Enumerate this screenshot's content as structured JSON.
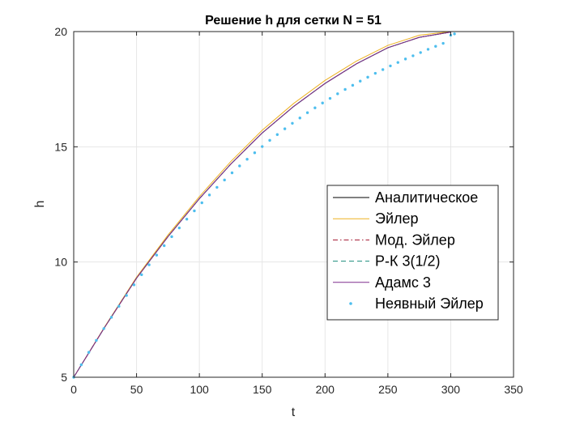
{
  "chart_data": {
    "type": "line",
    "title": "Решение h для сетки N = 51",
    "xlabel": "t",
    "ylabel": "h",
    "xlim": [
      0,
      350
    ],
    "ylim": [
      5,
      20
    ],
    "xticks": [
      0,
      50,
      100,
      150,
      200,
      250,
      300,
      350
    ],
    "yticks": [
      5,
      10,
      15,
      20
    ],
    "grid": true,
    "legend_position": "right-middle",
    "series": [
      {
        "name": "Аналитическое",
        "color": "#000000",
        "style": "solid",
        "x": [
          0,
          25,
          50,
          75,
          100,
          125,
          150,
          175,
          200,
          225,
          250,
          275,
          300
        ],
        "y": [
          5.0,
          7.2,
          9.3,
          11.1,
          12.75,
          14.25,
          15.6,
          16.75,
          17.75,
          18.6,
          19.3,
          19.75,
          19.98
        ]
      },
      {
        "name": "Эйлер",
        "color": "#EDB120",
        "style": "solid",
        "x": [
          0,
          25,
          50,
          75,
          100,
          125,
          150,
          175,
          200,
          225,
          250,
          275,
          300
        ],
        "y": [
          5.0,
          7.22,
          9.34,
          11.17,
          12.84,
          14.36,
          15.72,
          16.88,
          17.88,
          18.72,
          19.4,
          19.84,
          20.0
        ]
      },
      {
        "name": "Мод. Эйлер",
        "color": "#A2142F",
        "style": "dashdot",
        "x": [
          0,
          25,
          50,
          75,
          100,
          125,
          150,
          175,
          200,
          225,
          250,
          275,
          300
        ],
        "y": [
          5.0,
          7.2,
          9.3,
          11.1,
          12.75,
          14.25,
          15.6,
          16.75,
          17.75,
          18.6,
          19.3,
          19.75,
          19.98
        ]
      },
      {
        "name": "Р-К 3(1/2)",
        "color": "#1A8C7C",
        "style": "dashed",
        "x": [
          0,
          25,
          50,
          75,
          100,
          125,
          150,
          175,
          200,
          225,
          250,
          275,
          300
        ],
        "y": [
          5.0,
          7.2,
          9.3,
          11.1,
          12.75,
          14.25,
          15.6,
          16.75,
          17.75,
          18.6,
          19.3,
          19.75,
          19.98
        ]
      },
      {
        "name": "Адамс 3",
        "color": "#7E2F8E",
        "style": "solid",
        "x": [
          0,
          25,
          50,
          75,
          100,
          125,
          150,
          175,
          200,
          225,
          250,
          275,
          300
        ],
        "y": [
          5.0,
          7.2,
          9.3,
          11.1,
          12.75,
          14.25,
          15.6,
          16.75,
          17.75,
          18.6,
          19.3,
          19.75,
          19.98
        ]
      },
      {
        "name": "Неявный Эйлер",
        "color": "#4DBEEE",
        "style": "dots",
        "x": [
          0,
          6,
          12,
          18,
          24,
          30,
          36,
          42,
          48,
          54,
          60,
          66,
          72,
          78,
          84,
          90,
          96,
          102,
          108,
          114,
          120,
          126,
          132,
          138,
          144,
          150,
          156,
          162,
          168,
          174,
          180,
          186,
          192,
          198,
          204,
          210,
          216,
          222,
          228,
          234,
          240,
          246,
          252,
          258,
          264,
          270,
          276,
          282,
          288,
          294,
          300,
          303
        ],
        "y": [
          5.0,
          5.54,
          6.08,
          6.6,
          7.11,
          7.6,
          8.08,
          8.55,
          9.01,
          9.45,
          9.88,
          10.3,
          10.71,
          11.1,
          11.48,
          11.86,
          12.22,
          12.57,
          12.91,
          13.24,
          13.56,
          13.87,
          14.17,
          14.46,
          14.74,
          15.01,
          15.28,
          15.53,
          15.78,
          16.02,
          16.25,
          16.48,
          16.69,
          16.9,
          17.1,
          17.3,
          17.49,
          17.67,
          17.85,
          18.02,
          18.19,
          18.35,
          18.51,
          18.66,
          18.81,
          18.95,
          19.09,
          19.23,
          19.36,
          19.49,
          19.84,
          19.9
        ]
      }
    ]
  }
}
